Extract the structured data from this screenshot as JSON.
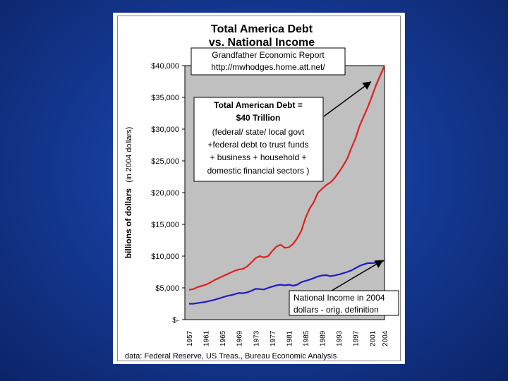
{
  "chart_data": {
    "type": "line",
    "title_line1": "Total America Debt",
    "title_line2": "vs. National Income",
    "ylabel": "billions of dollars",
    "ylabel_note": "(in 2004 dollars)",
    "xlabel": "",
    "ylim": [
      0,
      40000
    ],
    "xlim": [
      1957,
      2004
    ],
    "y_tick_values": [
      0,
      5000,
      10000,
      15000,
      20000,
      25000,
      30000,
      35000,
      40000
    ],
    "y_tick_labels": [
      "$-",
      "$5,000",
      "$10,000",
      "$15,000",
      "$20,000",
      "$25,000",
      "$30,000",
      "$35,000",
      "$40,000"
    ],
    "x_ticks": [
      "1957",
      "1961",
      "1965",
      "1969",
      "1973",
      "1977",
      "1981",
      "1985",
      "1989",
      "1993",
      "1997",
      "2001",
      "2004"
    ],
    "grid": false,
    "series": [
      {
        "key": "debt",
        "color": "#e0201c",
        "x": [
          1957,
          1958,
          1959,
          1960,
          1961,
          1962,
          1963,
          1964,
          1965,
          1966,
          1967,
          1968,
          1969,
          1970,
          1971,
          1972,
          1973,
          1974,
          1975,
          1976,
          1977,
          1978,
          1979,
          1980,
          1981,
          1982,
          1983,
          1984,
          1985,
          1986,
          1987,
          1988,
          1989,
          1990,
          1991,
          1992,
          1993,
          1994,
          1995,
          1996,
          1997,
          1998,
          1999,
          2000,
          2001,
          2002,
          2003,
          2004
        ],
        "values": [
          4700,
          4800,
          5100,
          5300,
          5500,
          5800,
          6200,
          6500,
          6800,
          7100,
          7400,
          7700,
          7900,
          8000,
          8400,
          9000,
          9700,
          10000,
          9800,
          10000,
          10800,
          11500,
          11800,
          11300,
          11400,
          11900,
          12800,
          14000,
          16000,
          17500,
          18500,
          20000,
          20600,
          21200,
          21600,
          22300,
          23200,
          24200,
          25300,
          27000,
          28500,
          30500,
          32000,
          33500,
          35200,
          37000,
          38500,
          40000
        ]
      },
      {
        "key": "income",
        "color": "#1c1ccc",
        "x": [
          1957,
          1958,
          1959,
          1960,
          1961,
          1962,
          1963,
          1964,
          1965,
          1966,
          1967,
          1968,
          1969,
          1970,
          1971,
          1972,
          1973,
          1974,
          1975,
          1976,
          1977,
          1978,
          1979,
          1980,
          1981,
          1982,
          1983,
          1984,
          1985,
          1986,
          1987,
          1988,
          1989,
          1990,
          1991,
          1992,
          1993,
          1994,
          1995,
          1996,
          1997,
          1998,
          1999,
          2000,
          2001,
          2002,
          2003,
          2004
        ],
        "values": [
          2500,
          2500,
          2600,
          2700,
          2800,
          2950,
          3100,
          3300,
          3500,
          3700,
          3850,
          4000,
          4200,
          4150,
          4300,
          4550,
          4850,
          4800,
          4750,
          5000,
          5200,
          5400,
          5500,
          5400,
          5500,
          5350,
          5500,
          5900,
          6100,
          6300,
          6550,
          6800,
          6950,
          7000,
          6850,
          6950,
          7100,
          7300,
          7500,
          7750,
          8100,
          8450,
          8700,
          8900,
          8900,
          8950,
          9100,
          9300
        ]
      }
    ],
    "annotations": {
      "source_box_line1": "Grandfather Economic Report",
      "source_box_line2": "http://mwhodges.home.att.net/",
      "debt_box_line1": "Total American Debt =",
      "debt_box_line2": "$40 Trillion",
      "debt_box_line3": "(federal/ state/ local govt",
      "debt_box_line4": "+federal debt to trust funds",
      "debt_box_line5": "+ business + household +",
      "debt_box_line6": "domestic financial sectors )",
      "income_box_line1": "National Income in 2004",
      "income_box_line2": "dollars - orig. definition"
    },
    "source_note": "data: Federal Reserve, US Treas., Bureau Economic Analysis"
  }
}
